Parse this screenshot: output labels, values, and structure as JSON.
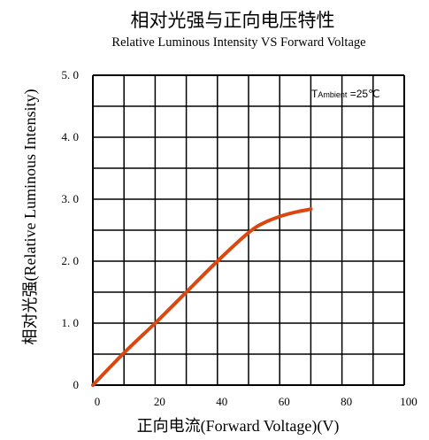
{
  "chart_data": {
    "type": "line",
    "title": "相对光强与正向电压特性",
    "subtitle": "Relative Luminous Intensity VS Forward Voltage",
    "xlabel": "正向电流(Forward  Voltage)(V)",
    "ylabel": "相对光强(Relative  Luminous  Intensity)",
    "annotation": {
      "prefix": "T",
      "subscript": "Ambient",
      "suffix": " =25℃"
    },
    "xlim": [
      0,
      100
    ],
    "ylim": [
      0,
      5
    ],
    "x_ticks": [
      "0",
      "20",
      "40",
      "60",
      "80",
      "100"
    ],
    "y_ticks": [
      "0",
      "1. 0",
      "2. 0",
      "3. 0",
      "4. 0",
      "5. 0"
    ],
    "grid": true,
    "line_color": "#d9480f",
    "series": [
      {
        "x": [
          0,
          10,
          20,
          30,
          40,
          50,
          55,
          60,
          65,
          70
        ],
        "y": [
          0,
          0.52,
          1.0,
          1.5,
          2.0,
          2.46,
          2.62,
          2.72,
          2.79,
          2.84
        ]
      }
    ]
  }
}
